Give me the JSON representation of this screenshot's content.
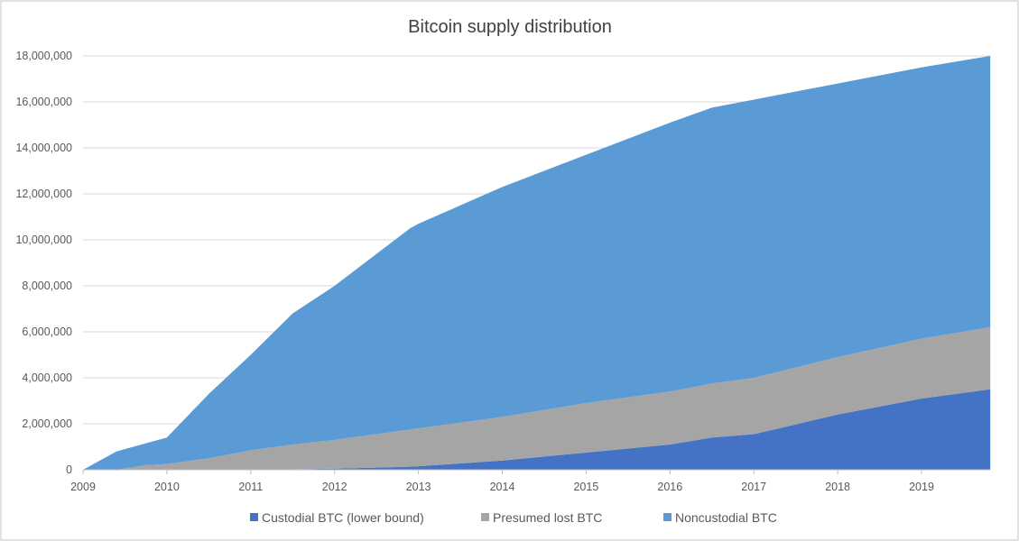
{
  "chart_data": {
    "type": "area",
    "stacked": true,
    "title": "Bitcoin supply distribution",
    "xlabel": "",
    "ylabel": "",
    "xlim": [
      2009,
      2019.82
    ],
    "ylim": [
      0,
      18000000
    ],
    "grid": true,
    "legend_position": "bottom",
    "x_ticks": [
      "2009",
      "2010",
      "2011",
      "2012",
      "2013",
      "2014",
      "2015",
      "2016",
      "2017",
      "2018",
      "2019"
    ],
    "y_ticks": [
      "0",
      "2,000,000",
      "4,000,000",
      "6,000,000",
      "8,000,000",
      "10,000,000",
      "12,000,000",
      "14,000,000",
      "16,000,000",
      "18,000,000"
    ],
    "x": [
      2009,
      2009.4,
      2009.75,
      2010,
      2010.5,
      2011,
      2011.5,
      2012,
      2012.9,
      2013,
      2014,
      2015,
      2016,
      2016.5,
      2017,
      2018,
      2019,
      2019.82
    ],
    "series": [
      {
        "name": "Custodial BTC (lower bound)",
        "color": "#4472C4",
        "values": [
          0,
          0,
          0,
          0,
          0,
          0,
          20000,
          50000,
          130000,
          150000,
          400000,
          750000,
          1100000,
          1400000,
          1550000,
          2400000,
          3100000,
          3500000
        ]
      },
      {
        "name": "Presumed lost BTC",
        "color": "#A5A5A5",
        "values": [
          0,
          0,
          200000,
          250000,
          500000,
          850000,
          1080000,
          1250000,
          1620000,
          1650000,
          1900000,
          2150000,
          2300000,
          2350000,
          2450000,
          2500000,
          2600000,
          2700000
        ]
      },
      {
        "name": "Noncustodial BTC",
        "color": "#5B9BD5",
        "values": [
          0,
          800000,
          950000,
          1150000,
          2800000,
          4150000,
          5700000,
          6700000,
          8750000,
          8900000,
          10000000,
          10800000,
          11700000,
          12000000,
          12100000,
          11900000,
          11800000,
          11800000
        ]
      }
    ]
  }
}
